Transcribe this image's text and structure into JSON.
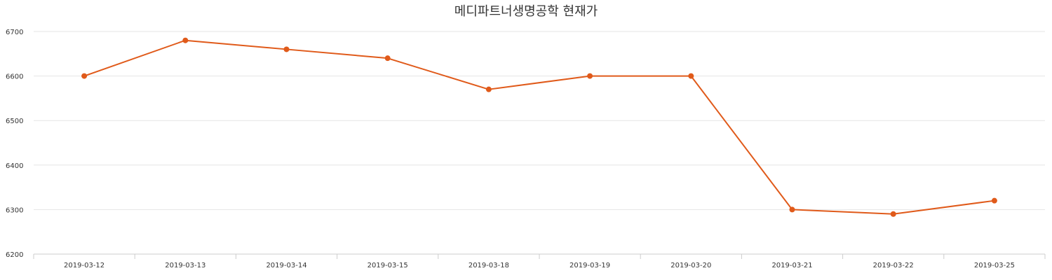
{
  "chart_data": {
    "type": "line",
    "title": "메디파트너생명공학 현재가",
    "xlabel": "",
    "ylabel": "",
    "categories": [
      "2019-03-12",
      "2019-03-13",
      "2019-03-14",
      "2019-03-15",
      "2019-03-18",
      "2019-03-19",
      "2019-03-20",
      "2019-03-21",
      "2019-03-22",
      "2019-03-25"
    ],
    "series": [
      {
        "values": [
          6600,
          6680,
          6660,
          6640,
          6570,
          6600,
          6600,
          6300,
          6290,
          6320
        ],
        "color": "#e05a1a"
      }
    ],
    "ylim": [
      6200,
      6700
    ],
    "yticks": [
      6200,
      6300,
      6400,
      6500,
      6600,
      6700
    ],
    "grid": true,
    "legend": "none",
    "colors": {
      "line": "#e05a1a",
      "grid": "#e6e6e6",
      "axis": "#cccccc",
      "text": "#333333"
    }
  }
}
